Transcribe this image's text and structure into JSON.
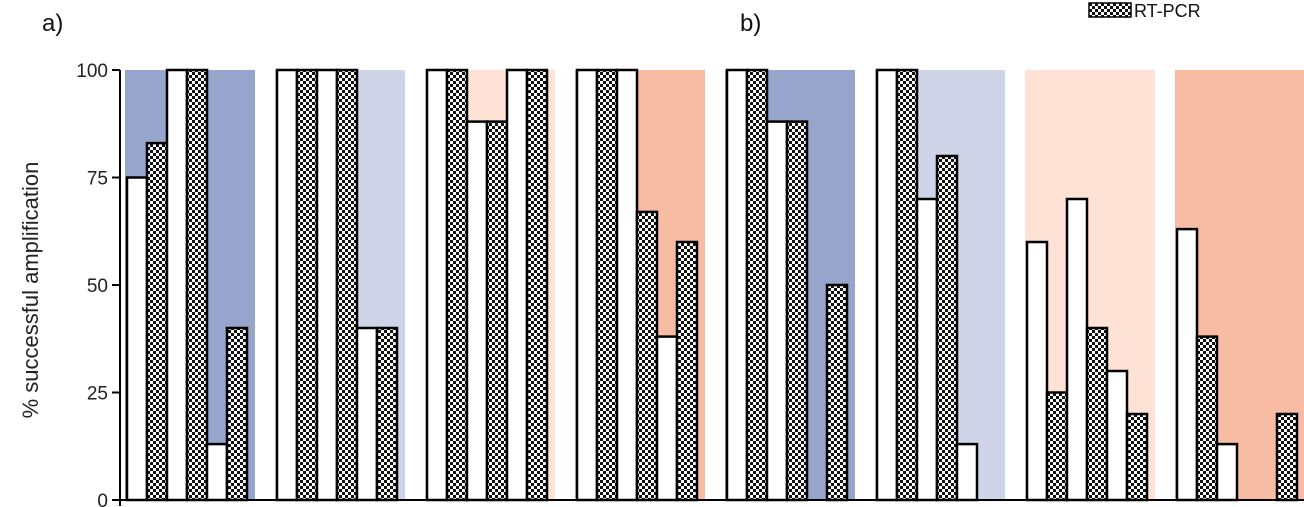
{
  "chart_data": {
    "type": "bar",
    "ylabel": "% successful amplification",
    "ylim": [
      0,
      100
    ],
    "yticks": [
      0,
      25,
      50,
      75,
      100
    ],
    "panel_labels": [
      "a)",
      "b)"
    ],
    "legend": [
      {
        "name": "RT-PCR",
        "pattern": "checkerboard"
      }
    ],
    "colors": {
      "dark_blue": "#97a4cb",
      "light_blue": "#cfd4e8",
      "light_peach": "#fde2d5",
      "salmon": "#f8bba3",
      "bar_white": "#ffffff",
      "bar_outline": "#000000"
    },
    "series": [
      {
        "name": "",
        "pattern": "white"
      },
      {
        "name": "RT-PCR",
        "pattern": "checkerboard"
      }
    ],
    "groups": [
      {
        "panel": "a",
        "bg": "dark_blue",
        "bars": [
          {
            "s": 0,
            "v": 75
          },
          {
            "s": 1,
            "v": 83
          },
          {
            "s": 0,
            "v": 100
          },
          {
            "s": 1,
            "v": 100
          },
          {
            "s": 0,
            "v": 13
          },
          {
            "s": 1,
            "v": 40
          }
        ]
      },
      {
        "panel": "a",
        "bg": "light_blue",
        "bars": [
          {
            "s": 0,
            "v": 100
          },
          {
            "s": 1,
            "v": 100
          },
          {
            "s": 0,
            "v": 100
          },
          {
            "s": 1,
            "v": 100
          },
          {
            "s": 0,
            "v": 40
          },
          {
            "s": 1,
            "v": 40
          }
        ]
      },
      {
        "panel": "a",
        "bg": "light_peach",
        "bars": [
          {
            "s": 0,
            "v": 100
          },
          {
            "s": 1,
            "v": 100
          },
          {
            "s": 0,
            "v": 88
          },
          {
            "s": 1,
            "v": 88
          },
          {
            "s": 0,
            "v": 100
          },
          {
            "s": 1,
            "v": 100
          }
        ]
      },
      {
        "panel": "a",
        "bg": "salmon",
        "bars": [
          {
            "s": 0,
            "v": 100
          },
          {
            "s": 1,
            "v": 100
          },
          {
            "s": 0,
            "v": 100
          },
          {
            "s": 1,
            "v": 67
          },
          {
            "s": 0,
            "v": 38
          },
          {
            "s": 1,
            "v": 60
          }
        ]
      },
      {
        "panel": "b",
        "bg": "dark_blue",
        "bars": [
          {
            "s": 0,
            "v": 100
          },
          {
            "s": 1,
            "v": 100
          },
          {
            "s": 0,
            "v": 88
          },
          {
            "s": 1,
            "v": 88
          },
          {
            "s": 0,
            "v": 0
          },
          {
            "s": 1,
            "v": 50
          }
        ]
      },
      {
        "panel": "b",
        "bg": "light_blue",
        "bars": [
          {
            "s": 0,
            "v": 100
          },
          {
            "s": 1,
            "v": 100
          },
          {
            "s": 0,
            "v": 70
          },
          {
            "s": 1,
            "v": 80
          },
          {
            "s": 0,
            "v": 13
          },
          {
            "s": 1,
            "v": 0
          }
        ]
      },
      {
        "panel": "b",
        "bg": "light_peach",
        "bars": [
          {
            "s": 0,
            "v": 60
          },
          {
            "s": 1,
            "v": 25
          },
          {
            "s": 0,
            "v": 70
          },
          {
            "s": 1,
            "v": 40
          },
          {
            "s": 0,
            "v": 30
          },
          {
            "s": 1,
            "v": 20
          }
        ]
      },
      {
        "panel": "b",
        "bg": "salmon",
        "bars": [
          {
            "s": 0,
            "v": 63
          },
          {
            "s": 1,
            "v": 38
          },
          {
            "s": 0,
            "v": 13
          },
          {
            "s": 1,
            "v": 0
          },
          {
            "s": 0,
            "v": 0
          },
          {
            "s": 1,
            "v": 20
          }
        ]
      }
    ]
  }
}
